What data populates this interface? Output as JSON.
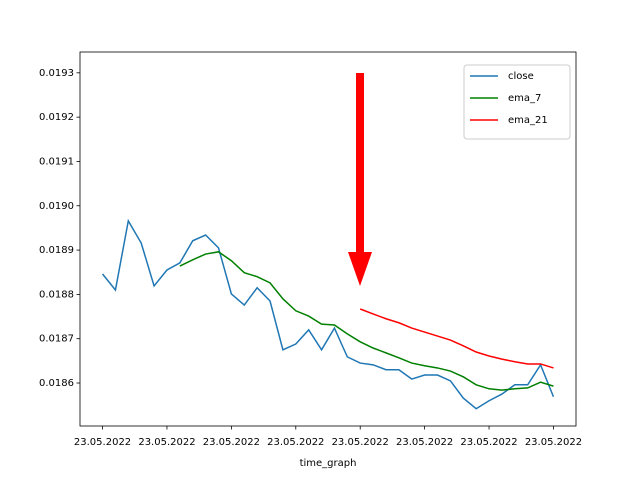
{
  "chart_data": {
    "type": "line",
    "x": [
      0,
      1,
      2,
      3,
      4,
      5,
      6,
      7,
      8,
      9,
      10,
      11,
      12,
      13,
      14,
      15,
      16,
      17,
      18,
      19,
      20,
      21,
      22,
      23,
      24,
      25,
      26,
      27,
      28,
      29,
      30,
      31,
      32,
      33,
      34,
      35
    ],
    "xlim": [
      -1.75,
      36.75
    ],
    "xticks": [
      {
        "value": 0,
        "label": "23.05.2022"
      },
      {
        "value": 5,
        "label": "23.05.2022"
      },
      {
        "value": 10,
        "label": "23.05.2022"
      },
      {
        "value": 15,
        "label": "23.05.2022"
      },
      {
        "value": 20,
        "label": "23.05.2022"
      },
      {
        "value": 25,
        "label": "23.05.2022"
      },
      {
        "value": 30,
        "label": "23.05.2022"
      },
      {
        "value": 35,
        "label": "23.05.2022"
      }
    ],
    "ylim": [
      0.018503,
      0.019347
    ],
    "yticks": [
      0.0186,
      0.0187,
      0.0188,
      0.0189,
      0.019,
      0.0191,
      0.0192,
      0.0193
    ],
    "y_tick_labels": [
      "0.0186",
      "0.0187",
      "0.0188",
      "0.0189",
      "0.0190",
      "0.0191",
      "0.0192",
      "0.0193"
    ],
    "x_label": "time_graph",
    "legend": "upper right",
    "series": [
      {
        "name": "close",
        "color": "#1f77b4",
        "values": [
          0.018846,
          0.01881,
          0.018966,
          0.018916,
          0.018819,
          0.018855,
          0.018871,
          0.018921,
          0.018934,
          0.018905,
          0.018801,
          0.018776,
          0.018815,
          0.018785,
          0.018675,
          0.018688,
          0.01872,
          0.018675,
          0.018724,
          0.018659,
          0.018645,
          0.018641,
          0.01863,
          0.01863,
          0.018609,
          0.018618,
          0.018618,
          0.018605,
          0.018566,
          0.018542,
          0.01856,
          0.018575,
          0.018596,
          0.018596,
          0.018641,
          0.018569
        ]
      },
      {
        "name": "ema_7",
        "color": "#008000",
        "values": [
          null,
          null,
          null,
          null,
          null,
          null,
          0.018864,
          0.018878,
          0.018891,
          0.018896,
          0.018876,
          0.018849,
          0.01884,
          0.018826,
          0.01879,
          0.018763,
          0.018751,
          0.018733,
          0.018731,
          0.018711,
          0.018693,
          0.018679,
          0.018668,
          0.018657,
          0.018645,
          0.018639,
          0.018634,
          0.018627,
          0.018614,
          0.018596,
          0.018587,
          0.018584,
          0.018587,
          0.018589,
          0.018602,
          0.018593
        ]
      },
      {
        "name": "ema_21",
        "color": "#ff0000",
        "values": [
          null,
          null,
          null,
          null,
          null,
          null,
          null,
          null,
          null,
          null,
          null,
          null,
          null,
          null,
          null,
          null,
          null,
          null,
          null,
          null,
          0.018767,
          0.018756,
          0.018745,
          0.018736,
          0.018724,
          0.018715,
          0.018706,
          0.018697,
          0.018684,
          0.01867,
          0.018661,
          0.018654,
          0.018648,
          0.018643,
          0.018643,
          0.018634
        ]
      }
    ]
  }
}
